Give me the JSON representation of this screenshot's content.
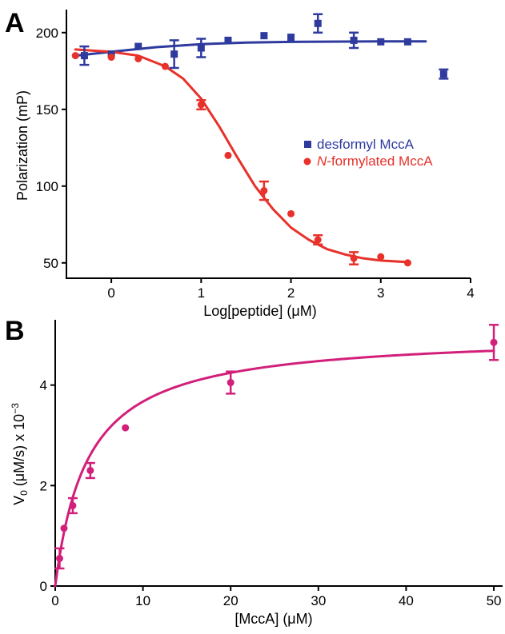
{
  "chart_data": [
    {
      "panel": "A",
      "type": "scatter",
      "xlabel": "Log[peptide] (μM)",
      "ylabel": "Polarization (mP)",
      "xlim": [
        -0.5,
        4
      ],
      "ylim": [
        40,
        215
      ],
      "xticks": [
        0,
        1,
        2,
        3,
        4
      ],
      "yticks": [
        50,
        100,
        150,
        200
      ],
      "legend_position": "center-right",
      "series": [
        {
          "name": "desformyl MccA",
          "color": "#2e3a9e",
          "marker": "square",
          "x": [
            -0.3,
            0,
            0.3,
            0.7,
            1.0,
            1.3,
            1.7,
            2.0,
            2.3,
            2.7,
            3.0,
            3.3,
            3.7
          ],
          "y": [
            185,
            186,
            191,
            186,
            190,
            195,
            198,
            197,
            206,
            195,
            194,
            194,
            173
          ],
          "err": [
            6,
            0,
            0,
            9,
            6,
            0,
            0,
            0,
            6,
            5,
            0,
            0,
            3
          ],
          "fit": [
            [
              -0.4,
              185
            ],
            [
              0,
              187.5
            ],
            [
              0.5,
              190.5
            ],
            [
              1,
              192.5
            ],
            [
              1.5,
              193.5
            ],
            [
              2,
              194
            ],
            [
              3,
              194.3
            ],
            [
              3.5,
              194.3
            ]
          ]
        },
        {
          "name": "N-formylated MccA",
          "name_italic": "N",
          "name_rest": "-formylated MccA",
          "color": "#e8312a",
          "marker": "circle",
          "x": [
            -0.4,
            0,
            0.3,
            0.6,
            1.0,
            1.3,
            1.7,
            2.0,
            2.3,
            2.7,
            3.0,
            3.3
          ],
          "y": [
            185,
            184,
            183,
            178,
            153,
            120,
            97,
            82,
            65,
            53,
            54,
            50
          ],
          "err": [
            0,
            0,
            0,
            0,
            3,
            0,
            6,
            0,
            3,
            4,
            0,
            0
          ],
          "fit": [
            [
              -0.4,
              189
            ],
            [
              0,
              187.5
            ],
            [
              0.3,
              185
            ],
            [
              0.6,
              178
            ],
            [
              0.8,
              170
            ],
            [
              1.0,
              157
            ],
            [
              1.2,
              139
            ],
            [
              1.4,
              119
            ],
            [
              1.6,
              100
            ],
            [
              1.8,
              85
            ],
            [
              2.0,
              73
            ],
            [
              2.2,
              65
            ],
            [
              2.4,
              59
            ],
            [
              2.6,
              55.5
            ],
            [
              2.8,
              53
            ],
            [
              3.0,
              51.5
            ],
            [
              3.3,
              50.5
            ]
          ]
        }
      ]
    },
    {
      "panel": "B",
      "type": "scatter",
      "xlabel": "[MccA] (μM)",
      "ylabel_main": "V",
      "ylabel_sub": "0",
      "ylabel_rest": " (μM/s) x 10",
      "ylabel_sup": "−3",
      "xlim": [
        0,
        51
      ],
      "ylim": [
        0,
        5.3
      ],
      "xticks": [
        0,
        10,
        20,
        30,
        40,
        50
      ],
      "yticks": [
        0,
        2,
        4
      ],
      "series": [
        {
          "name": "",
          "color": "#d21f7a",
          "marker": "circle",
          "x": [
            0.5,
            1,
            2,
            4,
            8,
            20,
            50
          ],
          "y": [
            0.55,
            1.15,
            1.6,
            2.3,
            3.15,
            4.05,
            4.85
          ],
          "err": [
            0.2,
            0,
            0.15,
            0.15,
            0,
            0.22,
            0.35
          ],
          "fit_model": {
            "Vmax": 5.03,
            "Km": 3.7
          }
        }
      ]
    }
  ]
}
